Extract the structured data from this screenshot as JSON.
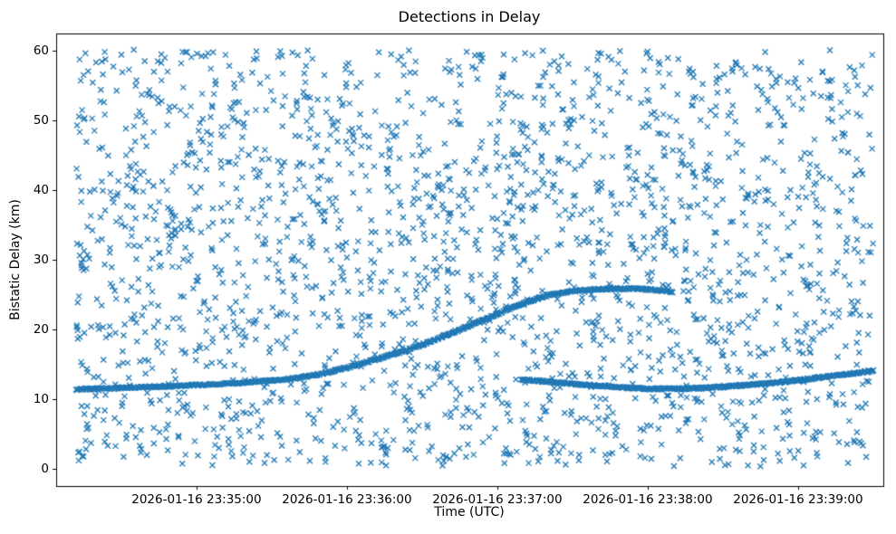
{
  "chart_data": {
    "type": "scatter",
    "title": "Detections in Delay",
    "xlabel": "Time (UTC)",
    "ylabel": "Bistatic Delay (km)",
    "marker": "x",
    "color": "#1f77b4",
    "legend": "none",
    "grid": false,
    "x_axis": {
      "unit": "seconds since 2026-01-16 23:34:00 UTC",
      "lim": [
        4,
        334
      ],
      "ticks": [
        60,
        120,
        180,
        240,
        300
      ],
      "tick_labels": [
        "2026-01-16 23:35:00",
        "2026-01-16 23:36:00",
        "2026-01-16 23:37:00",
        "2026-01-16 23:38:00",
        "2026-01-16 23:39:00"
      ]
    },
    "y_axis": {
      "lim": [
        -2.5,
        62.5
      ],
      "ticks": [
        0,
        10,
        20,
        30,
        40,
        50,
        60
      ],
      "tick_labels": [
        "0",
        "10",
        "20",
        "30",
        "40",
        "50",
        "60"
      ]
    },
    "noise": {
      "description": "uniform clutter detections across full time/delay extent",
      "count": 2200,
      "x_range": [
        12,
        330
      ],
      "y_range": [
        0.3,
        60.2
      ],
      "seed": 7
    },
    "tracks": [
      {
        "name": "rising-target-track",
        "description": "dense track rising from ~11.4 km at 23:34:12 to ~25.8 km plateau near 23:37:45, ending ~23:38:10",
        "n_points": 620,
        "jitter": 0.12,
        "control_points": [
          [
            12,
            11.4
          ],
          [
            30,
            11.6
          ],
          [
            50,
            11.85
          ],
          [
            70,
            12.15
          ],
          [
            90,
            12.65
          ],
          [
            100,
            13.0
          ],
          [
            110,
            13.6
          ],
          [
            120,
            14.5
          ],
          [
            130,
            15.5
          ],
          [
            140,
            16.6
          ],
          [
            150,
            17.8
          ],
          [
            160,
            19.2
          ],
          [
            170,
            20.7
          ],
          [
            180,
            22.2
          ],
          [
            190,
            23.7
          ],
          [
            200,
            24.9
          ],
          [
            210,
            25.5
          ],
          [
            222,
            25.8
          ],
          [
            235,
            25.85
          ],
          [
            245,
            25.6
          ],
          [
            250,
            25.4
          ]
        ]
      },
      {
        "name": "low-target-track",
        "description": "dense track dipping from ~12.8 km at 23:37:10 to ~11.5 km near 23:38:05 then rising to ~14 km at right edge",
        "n_points": 430,
        "jitter": 0.12,
        "control_points": [
          [
            190,
            12.8
          ],
          [
            200,
            12.5
          ],
          [
            210,
            12.2
          ],
          [
            220,
            11.9
          ],
          [
            230,
            11.65
          ],
          [
            240,
            11.5
          ],
          [
            250,
            11.45
          ],
          [
            260,
            11.55
          ],
          [
            270,
            11.75
          ],
          [
            280,
            12.0
          ],
          [
            290,
            12.3
          ],
          [
            300,
            12.7
          ],
          [
            310,
            13.15
          ],
          [
            320,
            13.6
          ],
          [
            330,
            14.05
          ]
        ]
      }
    ]
  }
}
